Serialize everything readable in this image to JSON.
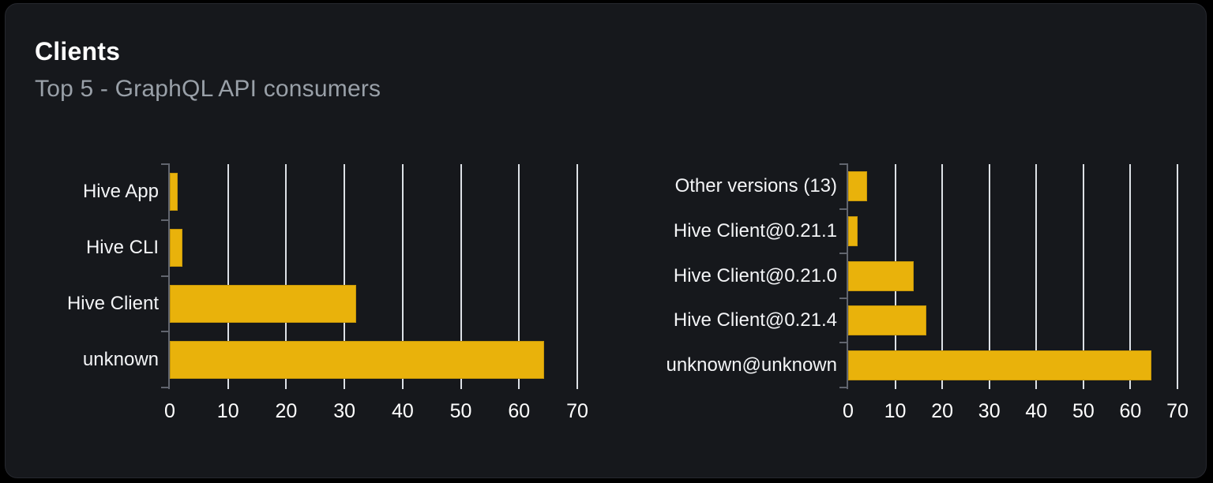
{
  "card": {
    "title": "Clients",
    "subtitle": "Top 5 - GraphQL API consumers"
  },
  "colors": {
    "page_bg": "#000000",
    "card_bg": "#16181c",
    "card_border": "#26282e",
    "title": "#ffffff",
    "subtitle": "#99a0a8",
    "bar": "#e9b20b",
    "grid": "#dde1e6",
    "axis": "#61656e",
    "category_label": "#f3f4f6",
    "tick_label": "#ffffff"
  },
  "chart_data": [
    {
      "name": "top-clients",
      "type": "bar",
      "orientation": "horizontal",
      "title": "",
      "categories": [
        "Hive App",
        "Hive CLI",
        "Hive Client",
        "unknown"
      ],
      "values": [
        1.4,
        2.2,
        32,
        64.3
      ],
      "xlim": [
        0,
        70
      ],
      "xticks": [
        0,
        10,
        20,
        30,
        40,
        50,
        60,
        70
      ],
      "grid": true,
      "legend": false
    },
    {
      "name": "top-client-versions",
      "type": "bar",
      "orientation": "horizontal",
      "title": "",
      "categories": [
        "Other versions (13)",
        "Hive Client@0.21.1",
        "Hive Client@0.21.0",
        "Hive Client@0.21.4",
        "unknown@unknown"
      ],
      "values": [
        4.1,
        2,
        13.9,
        16.6,
        64.4
      ],
      "xlim": [
        0,
        70
      ],
      "xticks": [
        0,
        10,
        20,
        30,
        40,
        50,
        60,
        70
      ],
      "grid": true,
      "legend": false
    }
  ]
}
